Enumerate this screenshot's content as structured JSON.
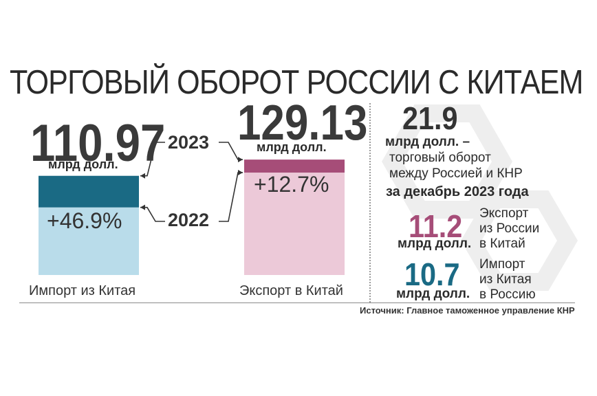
{
  "title": "ТОРГОВЫЙ ОБОРОТ РОССИИ С КИТАЕМ",
  "unit": "млрд долл.",
  "chart_data": {
    "type": "bar",
    "categories": [
      "Импорт из Китая",
      "Экспорт в Китай"
    ],
    "series": [
      {
        "name": "2022",
        "values": [
          75.64,
          114.58
        ]
      },
      {
        "name": "2023",
        "values": [
          110.97,
          129.13
        ]
      }
    ],
    "totals_2023": [
      "110.97",
      "129.13"
    ],
    "growth": [
      "+46.9%",
      "+12.7%"
    ],
    "years": [
      "2023",
      "2022"
    ],
    "colors": {
      "import_2023": "#1a6a84",
      "import_2022": "#b9dcea",
      "export_2023": "#a64d78",
      "export_2022": "#ecc9d8"
    }
  },
  "december": {
    "total_value": "21.9",
    "total_unit": "млрд долл. –",
    "total_line1": "торговый оборот",
    "total_line2": "между Россией и КНР",
    "total_line3": "за декабрь 2023 года",
    "export_value": "11.2",
    "export_unit": "млрд долл.",
    "export_line1": "Экспорт",
    "export_line2": "из России",
    "export_line3": "в Китай",
    "import_value": "10.7",
    "import_unit": "млрд долл.",
    "import_line1": "Импорт",
    "import_line2": "из Китая",
    "import_line3": "в Россию",
    "colors": {
      "export": "#a64d78",
      "import": "#1a6a84",
      "total": "#333333"
    }
  },
  "source": "Источник: Главное таможенное управление КНР"
}
